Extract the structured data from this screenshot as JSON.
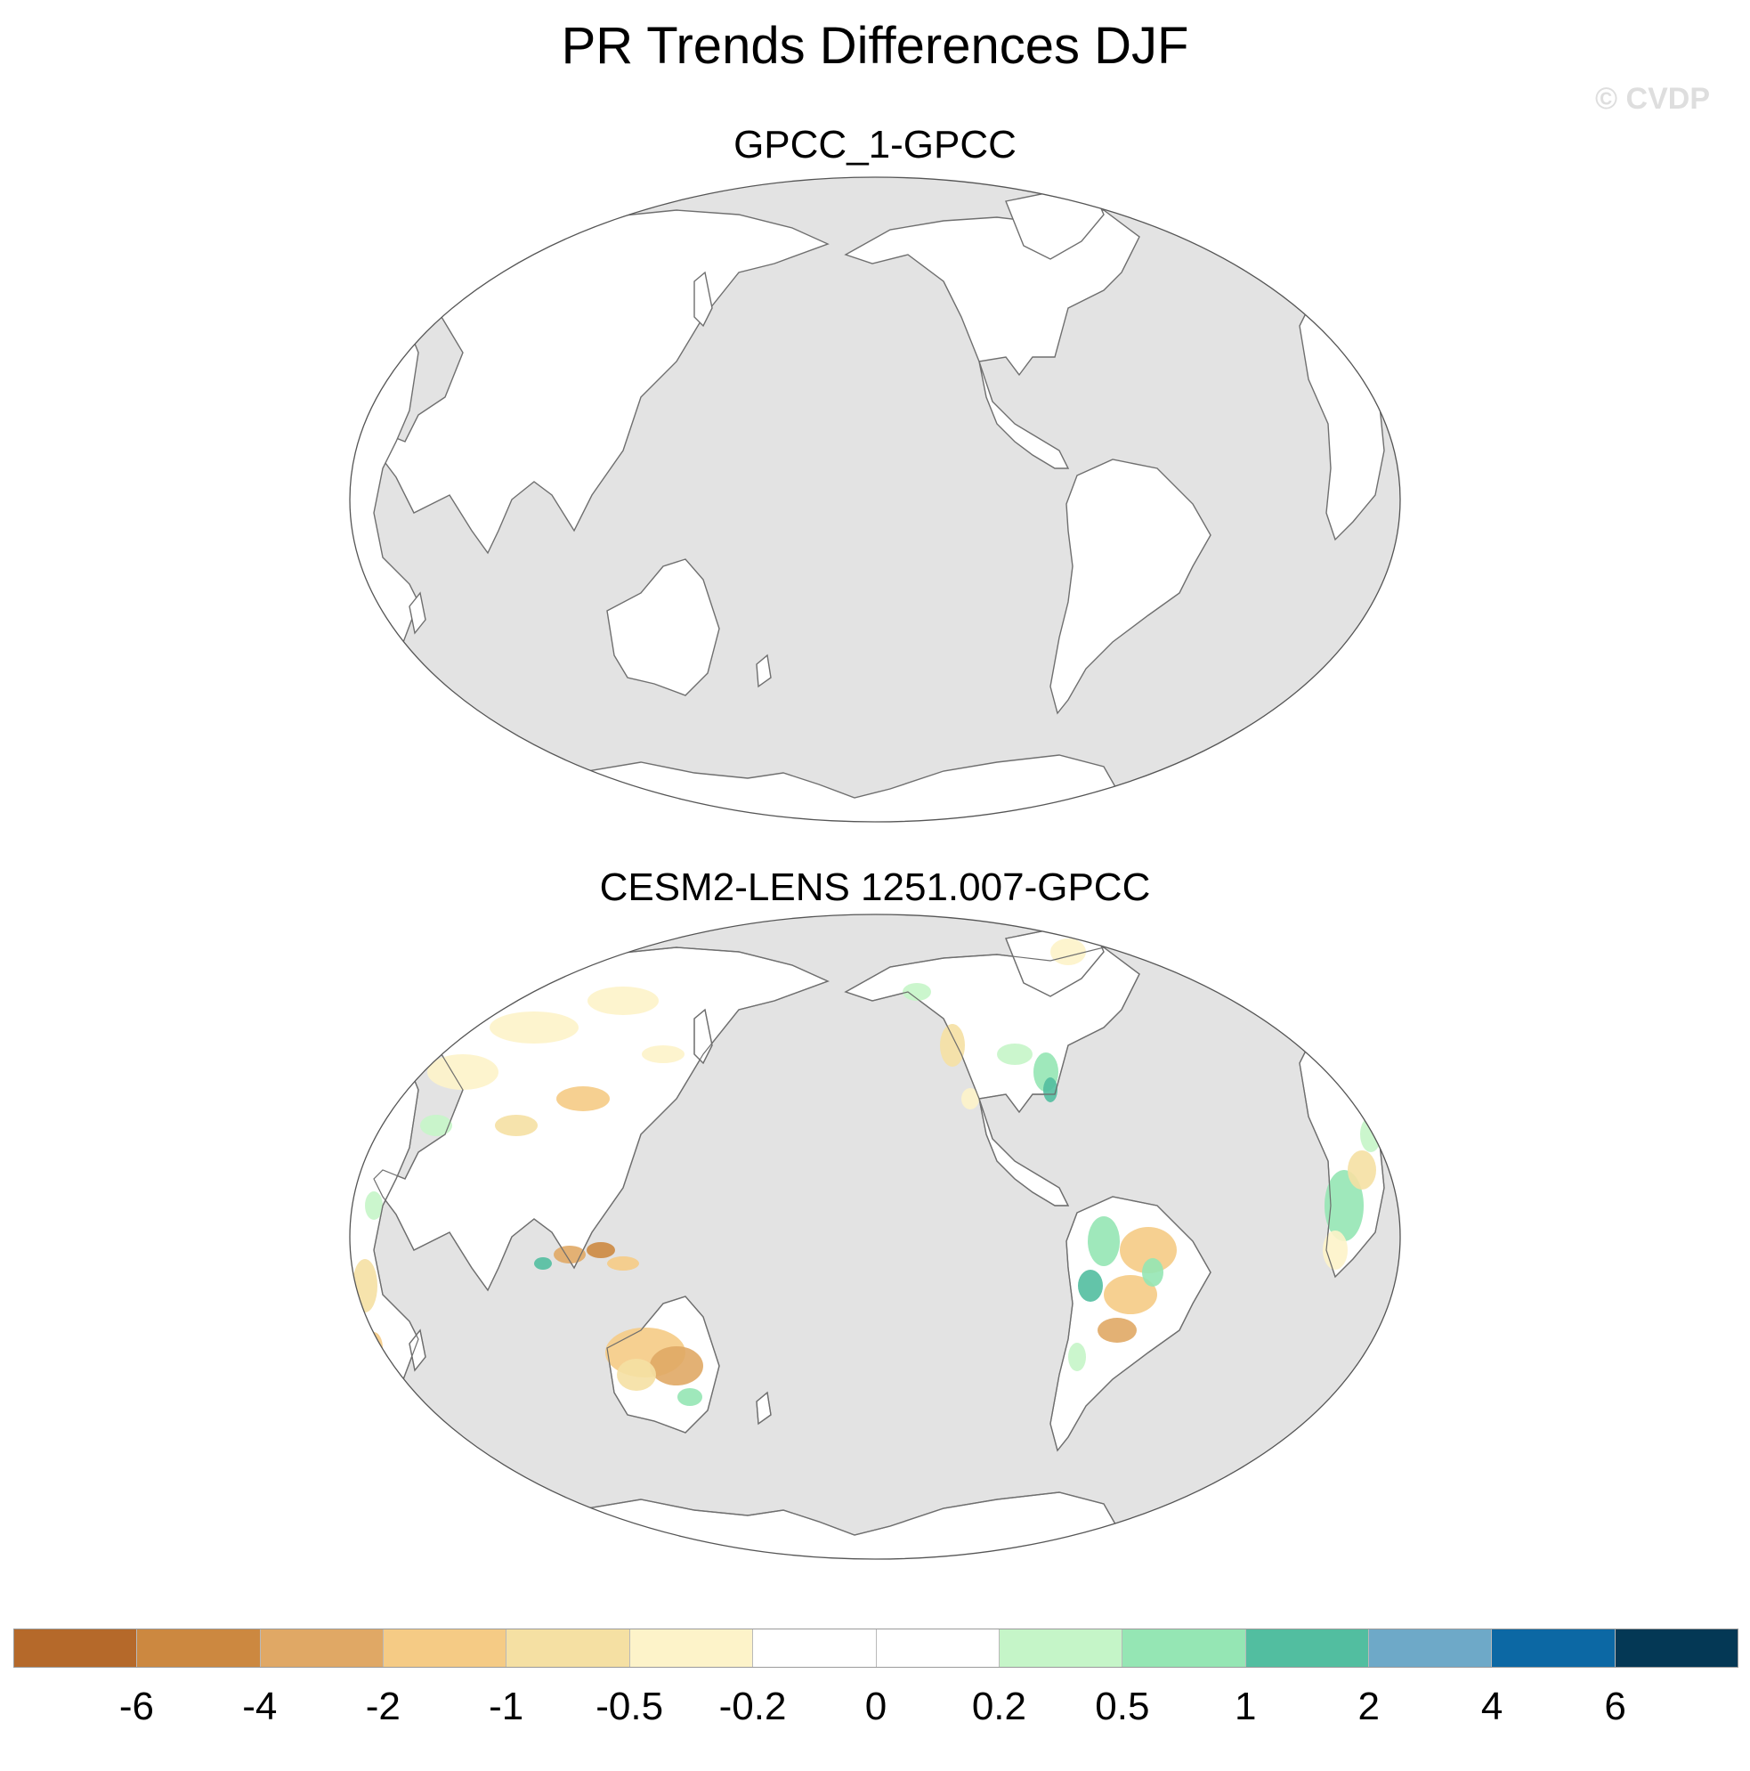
{
  "figure": {
    "title": "PR Trends Differences DJF",
    "watermark": "© CVDP"
  },
  "panels": [
    {
      "title": "GPCC_1-GPCC",
      "land_pattern": "uniform"
    },
    {
      "title": "CESM2-LENS 1251.007-GPCC",
      "land_pattern": "anomalies"
    }
  ],
  "colors": {
    "ocean_fill": "#e3e3e3",
    "land_fill": "#ffffff",
    "coastline": "#6f6f6f"
  },
  "colorbar": {
    "labels": [
      "-6",
      "-4",
      "-2",
      "-1",
      "-0.5",
      "-0.2",
      "0",
      "0.2",
      "0.5",
      "1",
      "2",
      "4",
      "6"
    ],
    "colors": [
      "#b5692a",
      "#cc8840",
      "#e0a865",
      "#f5cb85",
      "#f5e0a3",
      "#fdf3c9",
      "#ffffff",
      "#ffffff",
      "#c5f5c8",
      "#95e6b4",
      "#52bea0",
      "#6ea9c8",
      "#0c68a4",
      "#043855"
    ]
  },
  "map_data": {
    "projection": "Robinson, Pacific-centered (central meridian 180°)",
    "variable": "DJF precipitation trend difference",
    "land_anomalies_panel_2": [
      {
        "region": "Australia",
        "tone": "-1 to -2"
      },
      {
        "region": "Eastern South America",
        "tone": "-1 to -2"
      },
      {
        "region": "Central South America",
        "tone": "+0.5 to +1"
      },
      {
        "region": "Eastern North America",
        "tone": "+0.5 to +1"
      },
      {
        "region": "Maritime Continent",
        "tone": "mixed -2 to +1"
      },
      {
        "region": "Southern Africa",
        "tone": "mixed"
      },
      {
        "region": "Asia",
        "tone": "-0.2 to -0.5"
      }
    ]
  }
}
